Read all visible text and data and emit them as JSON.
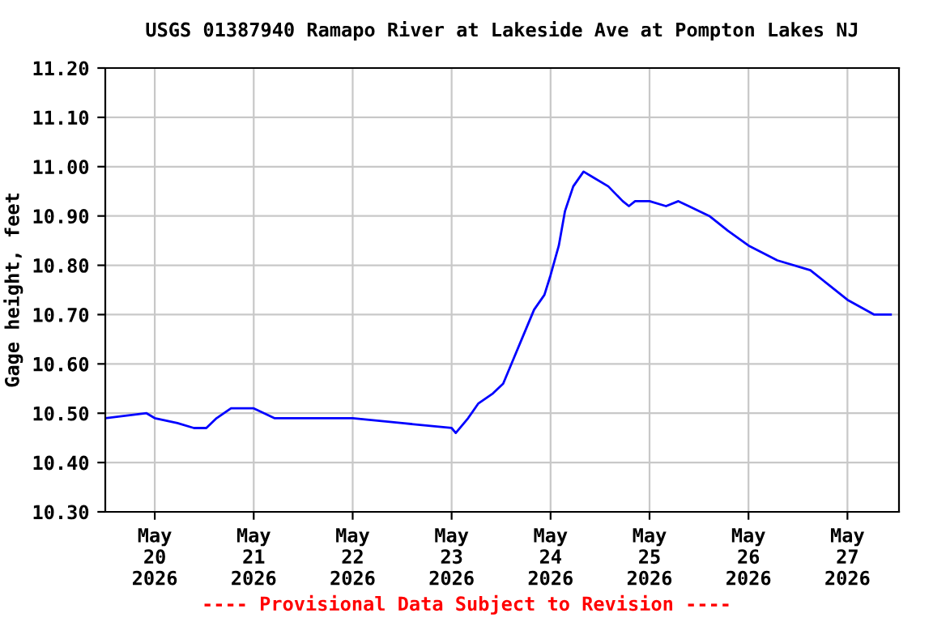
{
  "chart_data": {
    "type": "line",
    "title": "USGS 01387940 Ramapo River at Lakeside Ave at Pompton Lakes NJ",
    "ylabel": "Gage height, feet",
    "annotations": [
      "---- Provisional Data Subject to Revision ----"
    ],
    "series": [
      {
        "color": "#0000ff",
        "x": [
          "2026-05-19T12:00",
          "2026-05-19T22:00",
          "2026-05-20T00:00",
          "2026-05-20T05:30",
          "2026-05-20T09:30",
          "2026-05-20T12:30",
          "2026-05-20T15:00",
          "2026-05-20T18:30",
          "2026-05-21T00:00",
          "2026-05-21T05:00",
          "2026-05-21T12:00",
          "2026-05-22T00:00",
          "2026-05-22T12:00",
          "2026-05-23T00:00",
          "2026-05-23T01:00",
          "2026-05-23T04:00",
          "2026-05-23T06:30",
          "2026-05-23T10:00",
          "2026-05-23T12:30",
          "2026-05-23T15:00",
          "2026-05-23T17:00",
          "2026-05-23T20:00",
          "2026-05-23T22:30",
          "2026-05-24T00:00",
          "2026-05-24T02:00",
          "2026-05-24T03:30",
          "2026-05-24T05:30",
          "2026-05-24T08:00",
          "2026-05-24T10:00",
          "2026-05-24T14:00",
          "2026-05-24T17:30",
          "2026-05-24T19:00",
          "2026-05-24T20:30",
          "2026-05-25T00:00",
          "2026-05-25T04:00",
          "2026-05-25T07:00",
          "2026-05-25T14:30",
          "2026-05-25T19:00",
          "2026-05-26T00:00",
          "2026-05-26T07:00",
          "2026-05-26T15:00",
          "2026-05-26T19:30",
          "2026-05-27T00:00",
          "2026-05-27T06:30",
          "2026-05-27T10:30"
        ],
        "values": [
          10.49,
          10.5,
          10.49,
          10.48,
          10.47,
          10.47,
          10.49,
          10.51,
          10.51,
          10.49,
          10.49,
          10.49,
          10.48,
          10.47,
          10.46,
          10.49,
          10.52,
          10.54,
          10.56,
          10.61,
          10.65,
          10.71,
          10.74,
          10.78,
          10.84,
          10.91,
          10.96,
          10.99,
          10.98,
          10.96,
          10.93,
          10.92,
          10.93,
          10.93,
          10.92,
          10.93,
          10.9,
          10.87,
          10.84,
          10.81,
          10.79,
          10.76,
          10.73,
          10.7,
          10.7
        ]
      }
    ],
    "xlim": [
      "2026-05-19T12:00",
      "2026-05-27T12:30"
    ],
    "xticks": [
      {
        "value": "2026-05-20",
        "label": "May\n20\n2026"
      },
      {
        "value": "2026-05-21",
        "label": "May\n21\n2026"
      },
      {
        "value": "2026-05-22",
        "label": "May\n22\n2026"
      },
      {
        "value": "2026-05-23",
        "label": "May\n23\n2026"
      },
      {
        "value": "2026-05-24",
        "label": "May\n24\n2026"
      },
      {
        "value": "2026-05-25",
        "label": "May\n25\n2026"
      },
      {
        "value": "2026-05-26",
        "label": "May\n26\n2026"
      },
      {
        "value": "2026-05-27",
        "label": "May\n27\n2026"
      }
    ],
    "ylim": [
      10.3,
      11.2
    ],
    "yticks": [
      {
        "value": 10.3,
        "label": "10.30"
      },
      {
        "value": 10.4,
        "label": "10.40"
      },
      {
        "value": 10.5,
        "label": "10.50"
      },
      {
        "value": 10.6,
        "label": "10.60"
      },
      {
        "value": 10.7,
        "label": "10.70"
      },
      {
        "value": 10.8,
        "label": "10.80"
      },
      {
        "value": 10.9,
        "label": "10.90"
      },
      {
        "value": 11.0,
        "label": "11.00"
      },
      {
        "value": 11.1,
        "label": "11.10"
      },
      {
        "value": 11.2,
        "label": "11.20"
      }
    ],
    "grid": true
  }
}
